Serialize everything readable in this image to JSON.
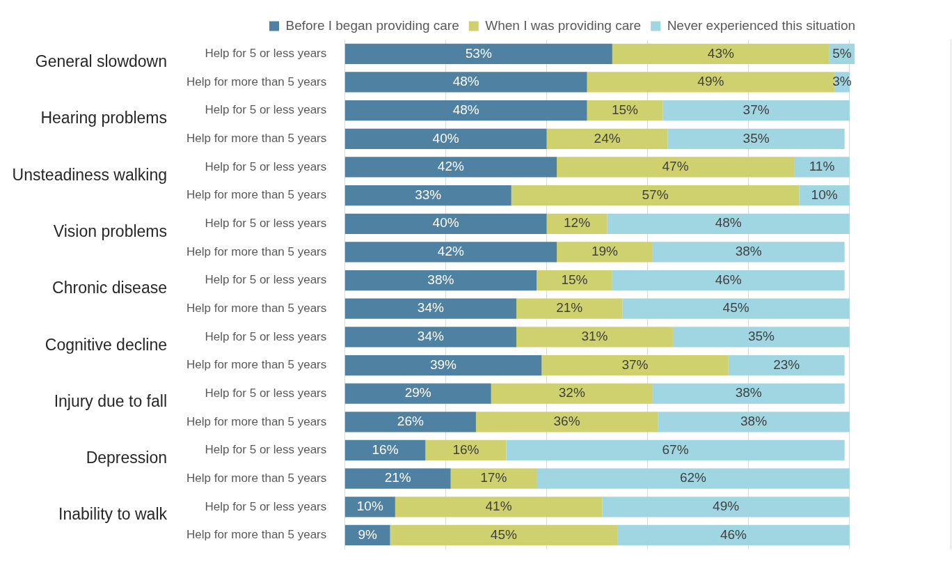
{
  "chart_data": {
    "type": "bar",
    "orientation": "horizontal",
    "stacked": true,
    "grid": "x",
    "tick_labels": "y",
    "legend": "top",
    "categories": [
      "Help for 5 or less years",
      "Help for more than 5 years",
      "Help for 5 or less years",
      "Help for more than 5 years",
      "Help for 5 or less years",
      "Help for more than 5 years",
      "Help for 5 or less years",
      "Help for more than 5 years",
      "Help for 5 or less years",
      "Help for more than 5 years",
      "Help for 5 or less years",
      "Help for more than 5 years",
      "Help for 5 or less years",
      "Help for more than 5 years",
      "Help for 5 or less years",
      "Help for more than 5 years",
      "Help for 5 or less years",
      "Help for more than 5 years"
    ],
    "annotations": [
      "General slowdown",
      "Hearing problems",
      "Unsteadiness walking",
      "Vision problems",
      "Chronic disease",
      "Cognitive decline",
      "Injury due to fall",
      "Depression",
      "Inability to walk"
    ],
    "series": [
      {
        "name": "Before I began providing care",
        "color": "#4f81a2",
        "values": [
          53,
          48,
          48,
          40,
          42,
          33,
          40,
          42,
          38,
          34,
          34,
          39,
          29,
          26,
          16,
          21,
          10,
          9
        ],
        "value_labels": [
          "53%",
          "48%",
          "48%",
          "40%",
          "42%",
          "33%",
          "40%",
          "42%",
          "38%",
          "34%",
          "34%",
          "39%",
          "29%",
          "26%",
          "16%",
          "21%",
          "10%",
          "9%"
        ]
      },
      {
        "name": "When I was providing care",
        "color": "#cfd16e",
        "values": [
          43,
          49,
          15,
          24,
          47,
          57,
          12,
          19,
          15,
          21,
          31,
          37,
          32,
          36,
          16,
          17,
          41,
          45
        ],
        "value_labels": [
          "43%",
          "49%",
          "15%",
          "24%",
          "47%",
          "57%",
          "12%",
          "19%",
          "15%",
          "21%",
          "31%",
          "37%",
          "32%",
          "36%",
          "16%",
          "17%",
          "41%",
          "45%"
        ]
      },
      {
        "name": "Never experienced this situation",
        "color": "#a0d6e1",
        "values": [
          5,
          3,
          37,
          35,
          11,
          10,
          48,
          38,
          46,
          45,
          35,
          23,
          38,
          38,
          67,
          62,
          49,
          46
        ],
        "value_labels": [
          "5%",
          "3%",
          "37%",
          "35%",
          "11%",
          "10%",
          "48%",
          "38%",
          "46%",
          "45%",
          "35%",
          "23%",
          "38%",
          "38%",
          "67%",
          "62%",
          "49%",
          "46%"
        ]
      }
    ]
  }
}
